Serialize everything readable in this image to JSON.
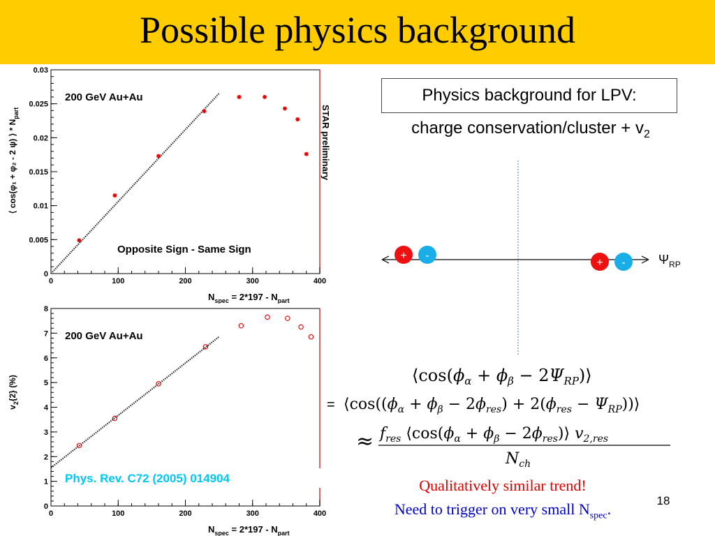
{
  "title": "Possible physics background",
  "lpv_box": "Physics background for LPV:",
  "lpv_sub_main": "charge conservation/cluster + v",
  "lpv_sub_sub": "2",
  "diagram": {
    "psi": "Ψ",
    "psi_sub": "RP",
    "plus": "+",
    "minus": "-"
  },
  "formula": {
    "line1": "⟨cos(φ",
    "alpha": "α",
    "beta": "β",
    "equals": "=",
    "approx": "≈"
  },
  "notes": {
    "line1": "Qualitatively similar trend!",
    "line2_main": "Need to trigger on very small N",
    "line2_sub": "spec",
    "line2_end": "."
  },
  "page_number": "18",
  "colors": {
    "title_bar": "#ffcc00",
    "plus": "#ee1111",
    "minus": "#1aaee8",
    "note_red": "#e00000",
    "note_blue": "#0000cc",
    "ref_cyan": "#00c8f0"
  },
  "chart_data": [
    {
      "type": "scatter",
      "annotation_tl": "200 GeV Au+Au",
      "annotation_mid": "Opposite Sign - Same Sign",
      "annotation_side": "STAR preliminary",
      "xlabel": "N",
      "xlabel_sub1": "spec",
      "xlabel_mid": " = 2*197 - N",
      "xlabel_sub2": "part",
      "ylabel": "⟨ cos(φ₁ + φ₂ - 2 ψ) ⟩ * N",
      "ylabel_sub": "part",
      "xlim": [
        0,
        400
      ],
      "ylim": [
        0,
        0.03
      ],
      "xticks": [
        0,
        100,
        200,
        300,
        400
      ],
      "yticks": [
        0,
        0.005,
        0.01,
        0.015,
        0.02,
        0.025,
        0.03
      ],
      "ytick_labels": [
        "0",
        "0.005",
        "0.01",
        "0.015",
        "0.02",
        "0.025",
        "0.03"
      ],
      "series": [
        {
          "marker": "star",
          "color": "#e00000",
          "x": [
            42,
            95,
            160,
            228,
            280,
            318,
            348,
            367,
            380
          ],
          "y": [
            0.0049,
            0.0115,
            0.0173,
            0.0239,
            0.026,
            0.026,
            0.0243,
            0.0227,
            0.0176
          ]
        }
      ],
      "fit_line": {
        "x": [
          0,
          250
        ],
        "y": [
          0,
          0.0265
        ]
      }
    },
    {
      "type": "scatter",
      "annotation_tl": "200 GeV Au+Au",
      "reference": "Phys. Rev. C72 (2005) 014904",
      "xlabel": "N",
      "xlabel_sub1": "spec",
      "xlabel_mid": " = 2*197 - N",
      "xlabel_sub2": "part",
      "ylabel": "v",
      "ylabel_sub": "2",
      "ylabel_end": "{2} (%)",
      "xlim": [
        0,
        400
      ],
      "ylim": [
        0,
        8
      ],
      "xticks": [
        0,
        100,
        200,
        300,
        400
      ],
      "yticks": [
        0,
        1,
        2,
        3,
        4,
        5,
        6,
        7,
        8
      ],
      "ytick_labels": [
        "0",
        "1",
        "2",
        "3",
        "4",
        "5",
        "6",
        "7",
        "8"
      ],
      "series": [
        {
          "marker": "open-circle",
          "color": "#e00000",
          "x": [
            42,
            95,
            160,
            230,
            283,
            322,
            352,
            372,
            387
          ],
          "y": [
            2.45,
            3.55,
            4.95,
            6.45,
            7.3,
            7.65,
            7.6,
            7.25,
            6.85
          ]
        }
      ],
      "fit_line": {
        "x": [
          0,
          250
        ],
        "y": [
          1.55,
          6.85
        ]
      }
    }
  ]
}
